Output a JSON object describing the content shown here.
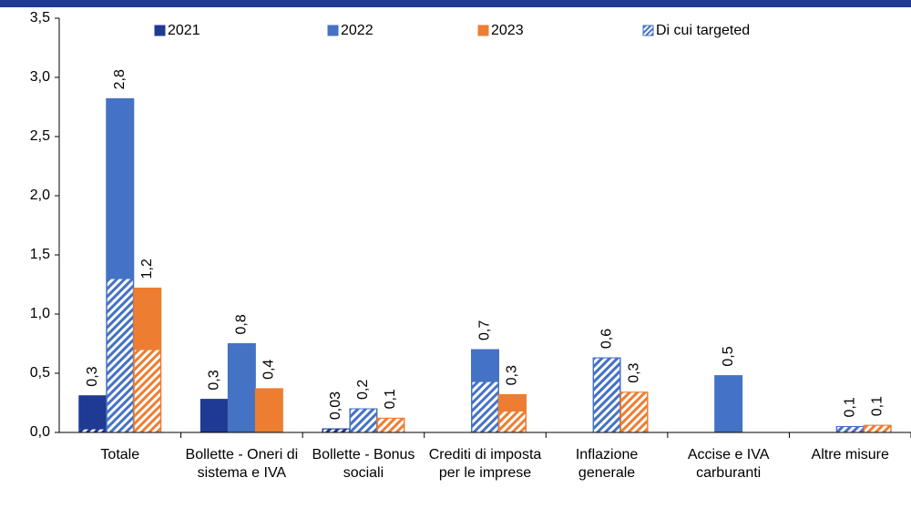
{
  "chart_data": {
    "type": "bar",
    "categories": [
      "Totale",
      "Bollette - Oneri di sistema e IVA",
      "Bollette - Bonus sociali",
      "Crediti di imposta per le imprese",
      "Inflazione generale",
      "Accise e IVA carburanti",
      "Altre misure"
    ],
    "series": [
      {
        "name": "2021",
        "color": "#1f3a93",
        "values": [
          0.31,
          0.28,
          0.03,
          null,
          null,
          null,
          null
        ],
        "value_labels": [
          "0,3",
          "0,3",
          "0,03",
          null,
          null,
          null,
          null
        ],
        "targeted": [
          0.03,
          null,
          0.03,
          null,
          null,
          null,
          null
        ]
      },
      {
        "name": "2022",
        "color": "#4472c4",
        "values": [
          2.82,
          0.75,
          0.2,
          0.7,
          0.63,
          0.48,
          0.05
        ],
        "value_labels": [
          "2,8",
          "0,8",
          "0,2",
          "0,7",
          "0,6",
          "0,5",
          "0,1"
        ],
        "targeted": [
          1.3,
          null,
          0.2,
          0.43,
          0.63,
          null,
          0.05
        ]
      },
      {
        "name": "2023",
        "color": "#ed7d31",
        "values": [
          1.22,
          0.37,
          0.12,
          0.32,
          0.34,
          null,
          0.06
        ],
        "value_labels": [
          "1,2",
          "0,4",
          "0,1",
          "0,3",
          "0,3",
          null,
          "0,1"
        ],
        "targeted": [
          0.7,
          null,
          0.12,
          0.18,
          0.34,
          null,
          0.06
        ]
      }
    ],
    "targeted_name": "Di cui targeted",
    "ylim": [
      0,
      3.5
    ],
    "yticks": [
      {
        "value": 0,
        "label": "0,0"
      },
      {
        "value": 0.5,
        "label": "0,5"
      },
      {
        "value": 1,
        "label": "1,0"
      },
      {
        "value": 1.5,
        "label": "1,5"
      },
      {
        "value": 2,
        "label": "2,0"
      },
      {
        "value": 2.5,
        "label": "2,5"
      },
      {
        "value": 3,
        "label": "3,0"
      },
      {
        "value": 3.5,
        "label": "3,5"
      }
    ],
    "grid": false
  }
}
